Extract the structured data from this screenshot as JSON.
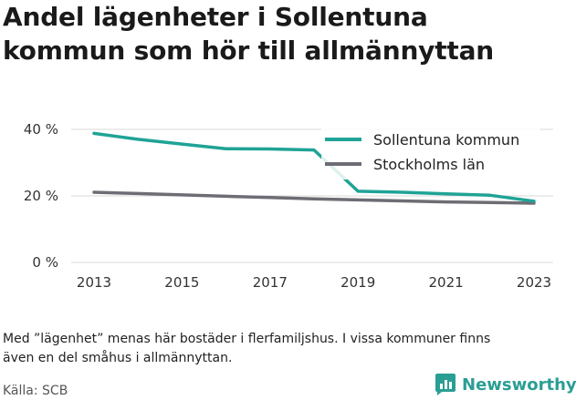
{
  "title_line1": "Andel lägenheter i Sollentuna",
  "title_line2": "kommun som hör till allmännyttan",
  "note_line1": "Med ”lägenhet” menas här bostäder i flerfamiljshus. I vissa kommuner finns",
  "note_line2": "även en del småhus i allmännyttan.",
  "source": "Källa: SCB",
  "brand": "Newsworthy",
  "chart_data": {
    "type": "line",
    "x": [
      2013,
      2014,
      2015,
      2016,
      2017,
      2018,
      2019,
      2020,
      2021,
      2022,
      2023
    ],
    "series": [
      {
        "name": "Sollentuna kommun",
        "color": "#1fa396",
        "values": [
          38.8,
          37.0,
          35.6,
          34.2,
          34.1,
          33.8,
          21.4,
          21.1,
          20.6,
          20.2,
          18.4
        ]
      },
      {
        "name": "Stockholms län",
        "color": "#6e6c74",
        "values": [
          21.1,
          20.7,
          20.3,
          19.9,
          19.5,
          19.1,
          18.8,
          18.5,
          18.2,
          18.0,
          17.8
        ]
      }
    ],
    "yticks": [
      "0 %",
      "20 %",
      "40 %"
    ],
    "ytick_values": [
      0,
      20,
      40
    ],
    "xticks": [
      "2013",
      "2015",
      "2017",
      "2019",
      "2021",
      "2023"
    ],
    "xtick_values": [
      2013,
      2015,
      2017,
      2019,
      2021,
      2023
    ],
    "ylim": [
      0,
      40
    ],
    "xlim": [
      2013,
      2023
    ],
    "legend_position": "top-right",
    "grid": "horizontal",
    "grid_color": "#d8d8d8"
  }
}
